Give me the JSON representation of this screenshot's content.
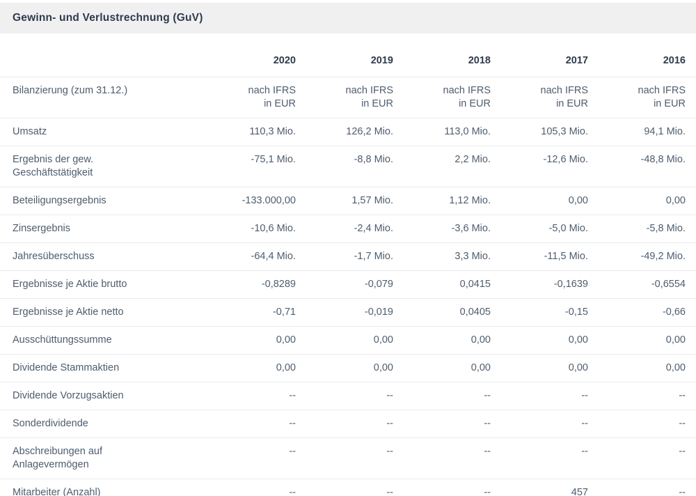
{
  "title": "Gewinn- und Verlustrechnung (GuV)",
  "table": {
    "year_headers": [
      "2020",
      "2019",
      "2018",
      "2017",
      "2016"
    ],
    "rows": [
      {
        "label": "Bilanzierung (zum 31.12.)",
        "values": [
          "nach IFRS\nin EUR",
          "nach IFRS\nin EUR",
          "nach IFRS\nin EUR",
          "nach IFRS\nin EUR",
          "nach IFRS\nin EUR"
        ]
      },
      {
        "label": "Umsatz",
        "values": [
          "110,3 Mio.",
          "126,2 Mio.",
          "113,0 Mio.",
          "105,3 Mio.",
          "94,1 Mio."
        ]
      },
      {
        "label": "Ergebnis der gew.\nGeschäftstätigkeit",
        "values": [
          "-75,1 Mio.",
          "-8,8 Mio.",
          "2,2 Mio.",
          "-12,6 Mio.",
          "-48,8 Mio."
        ]
      },
      {
        "label": "Beteiligungsergebnis",
        "values": [
          "-133.000,00",
          "1,57 Mio.",
          "1,12 Mio.",
          "0,00",
          "0,00"
        ]
      },
      {
        "label": "Zinsergebnis",
        "values": [
          "-10,6 Mio.",
          "-2,4 Mio.",
          "-3,6 Mio.",
          "-5,0 Mio.",
          "-5,8 Mio."
        ]
      },
      {
        "label": "Jahresüberschuss",
        "values": [
          "-64,4 Mio.",
          "-1,7 Mio.",
          "3,3 Mio.",
          "-11,5 Mio.",
          "-49,2 Mio."
        ]
      },
      {
        "label": "Ergebnisse je Aktie brutto",
        "values": [
          "-0,8289",
          "-0,079",
          "0,0415",
          "-0,1639",
          "-0,6554"
        ]
      },
      {
        "label": "Ergebnisse je Aktie netto",
        "values": [
          "-0,71",
          "-0,019",
          "0,0405",
          "-0,15",
          "-0,66"
        ]
      },
      {
        "label": "Ausschüttungssumme",
        "values": [
          "0,00",
          "0,00",
          "0,00",
          "0,00",
          "0,00"
        ]
      },
      {
        "label": "Dividende Stammaktien",
        "values": [
          "0,00",
          "0,00",
          "0,00",
          "0,00",
          "0,00"
        ]
      },
      {
        "label": "Dividende Vorzugsaktien",
        "values": [
          "--",
          "--",
          "--",
          "--",
          "--"
        ]
      },
      {
        "label": "Sonderdividende",
        "values": [
          "--",
          "--",
          "--",
          "--",
          "--"
        ]
      },
      {
        "label": "Abschreibungen auf\nAnlagevermögen",
        "values": [
          "--",
          "--",
          "--",
          "--",
          "--"
        ]
      },
      {
        "label": "Mitarbeiter (Anzahl)",
        "values": [
          "--",
          "--",
          "--",
          "457",
          "--"
        ]
      }
    ]
  },
  "colors": {
    "header_bg": "#f0f0f1",
    "heading_text": "#2e3b4c",
    "body_text": "#4e5d6e",
    "divider": "#e9eaec"
  }
}
